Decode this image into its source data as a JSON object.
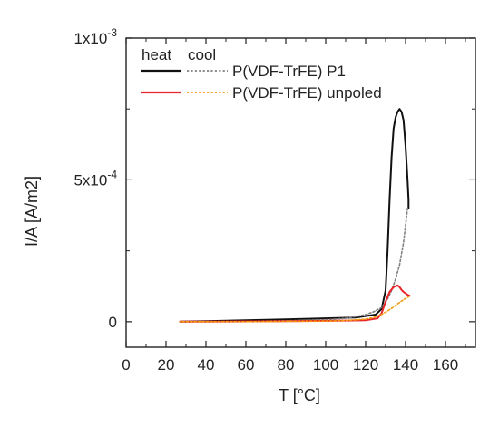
{
  "chart_data": {
    "type": "line",
    "title": "",
    "xlabel": "T [°C]",
    "ylabel": "I/A  [A/m2]",
    "xlim": [
      0,
      175
    ],
    "ylim": [
      -9e-05,
      0.001
    ],
    "x_ticks": [
      {
        "value": 0,
        "label": "0"
      },
      {
        "value": 20,
        "label": "20"
      },
      {
        "value": 40,
        "label": "40"
      },
      {
        "value": 60,
        "label": "60"
      },
      {
        "value": 80,
        "label": "80"
      },
      {
        "value": 100,
        "label": "100"
      },
      {
        "value": 120,
        "label": "120"
      },
      {
        "value": 140,
        "label": "140"
      },
      {
        "value": 160,
        "label": "160"
      }
    ],
    "y_ticks": [
      {
        "value": 0,
        "label": "0",
        "mantissa": "",
        "exponent": ""
      },
      {
        "value": 0.0005,
        "label": "5x10-4",
        "mantissa": "5x10",
        "exponent": "-4"
      },
      {
        "value": 0.001,
        "label": "1x10-3",
        "mantissa": "1x10",
        "exponent": "-3"
      }
    ],
    "grid": false,
    "legend": {
      "placement": "top-left",
      "column_headers": [
        "heat",
        "cool"
      ],
      "rows": [
        {
          "label": "P(VDF-TrFE) P1"
        },
        {
          "label": "P(VDF-TrFE) unpoled"
        }
      ]
    },
    "series": [
      {
        "name": "P(VDF-TrFE) P1",
        "mode": "heat",
        "color": "#111111",
        "dash": "solid",
        "x": [
          27,
          40,
          60,
          80,
          100,
          115,
          125,
          128,
          130,
          131,
          132,
          133,
          134,
          135,
          136,
          137,
          138,
          139,
          140,
          141,
          141.5,
          141.5
        ],
        "y": [
          0,
          2e-06,
          5e-06,
          8e-06,
          1.2e-05,
          1.5e-05,
          2.5e-05,
          4.5e-05,
          0.00011,
          0.00025,
          0.00043,
          0.00058,
          0.00068,
          0.00072,
          0.00074,
          0.00075,
          0.00074,
          0.00071,
          0.00062,
          0.0005,
          0.00043,
          0.0004
        ]
      },
      {
        "name": "P(VDF-TrFE) P1",
        "mode": "cool",
        "color": "#808080",
        "dash": "dotted",
        "x": [
          141,
          139,
          137,
          135,
          133,
          131,
          128,
          124,
          120,
          115,
          110,
          100,
          80,
          60,
          40,
          27
        ],
        "y": [
          0.0004,
          0.00028,
          0.0002,
          0.00015,
          0.00011,
          8e-05,
          5e-05,
          3.5e-05,
          2.5e-05,
          1.8e-05,
          1.2e-05,
          7e-06,
          3e-06,
          1e-06,
          0,
          0
        ]
      },
      {
        "name": "P(VDF-TrFE) unpoled",
        "mode": "heat",
        "color": "#e8252a",
        "dash": "solid",
        "x": [
          27,
          40,
          60,
          80,
          100,
          120,
          126,
          128,
          130,
          132,
          134,
          136,
          137,
          138,
          139,
          140,
          141,
          142
        ],
        "y": [
          0,
          0,
          1e-06,
          2e-06,
          3e-06,
          5e-06,
          1.2e-05,
          3e-05,
          7e-05,
          0.000105,
          0.000122,
          0.000128,
          0.000122,
          0.000112,
          0.000105,
          0.0001,
          9.5e-05,
          9.2e-05
        ]
      },
      {
        "name": "P(VDF-TrFE) unpoled",
        "mode": "cool",
        "color": "#f39c12",
        "dash": "dotted",
        "x": [
          142,
          140,
          137,
          134,
          131,
          128,
          124,
          120,
          110,
          100,
          80,
          60,
          40,
          27
        ],
        "y": [
          9e-05,
          8.2e-05,
          6.8e-05,
          5.2e-05,
          3.8e-05,
          2.6e-05,
          1.5e-05,
          9e-06,
          4e-06,
          2e-06,
          1e-06,
          0,
          0,
          0
        ]
      }
    ]
  }
}
